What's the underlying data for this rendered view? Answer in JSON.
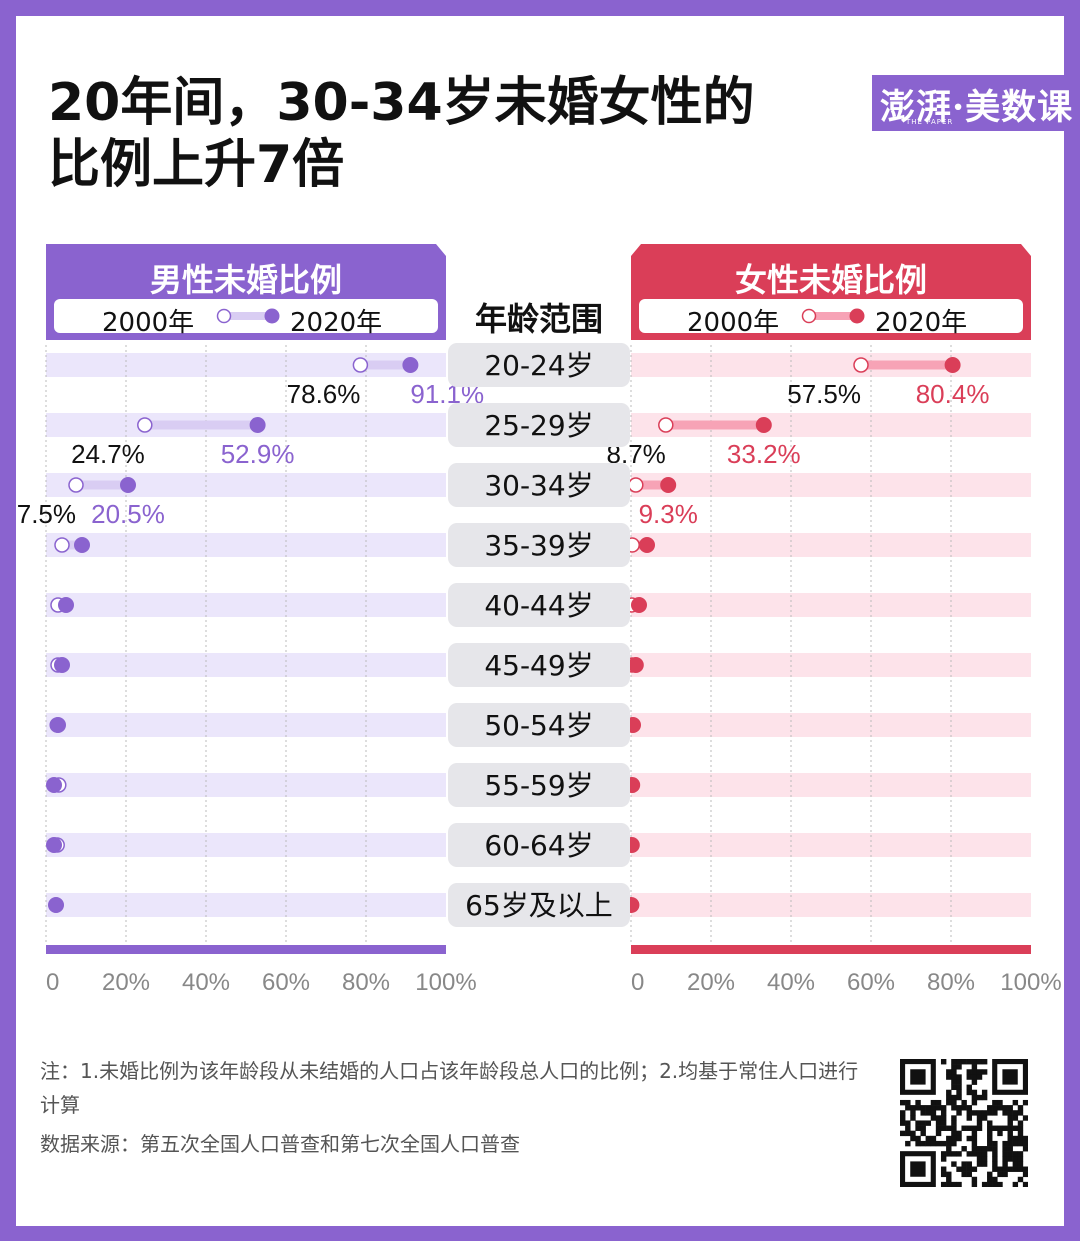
{
  "title_line1": "20年间，30-34岁未婚女性的",
  "title_line2": "比例上升7倍",
  "logo": {
    "text": "澎湃·美数课",
    "sub": "THE PAPER"
  },
  "male_panel": {
    "title": "男性未婚比例",
    "legend_2000": "2000年",
    "legend_2020": "2020年"
  },
  "female_panel": {
    "title": "女性未婚比例",
    "legend_2000": "2000年",
    "legend_2020": "2020年"
  },
  "age_header": "年龄范围",
  "colors": {
    "purple": "#8a63cf",
    "purple_band": "#ebe6fb",
    "purple_light_line": "#d9cdf3",
    "red": "#da3e58",
    "red_band": "#fde3ea",
    "red_light_line": "#f7a3b6"
  },
  "chart_data": {
    "type": "dumbbell",
    "categories": [
      "20-24岁",
      "25-29岁",
      "30-34岁",
      "35-39岁",
      "40-44岁",
      "45-49岁",
      "50-54岁",
      "55-59岁",
      "60-64岁",
      "65岁及以上"
    ],
    "series": [
      {
        "name": "男性未婚比例",
        "values_2000": [
          78.6,
          24.7,
          7.5,
          4.0,
          3.0,
          3.0,
          2.8,
          3.2,
          2.8,
          2.5
        ],
        "values_2020": [
          91.1,
          52.9,
          20.5,
          9.0,
          5.0,
          4.0,
          3.0,
          2.0,
          2.0,
          2.5
        ]
      },
      {
        "name": "女性未婚比例",
        "values_2000": [
          57.5,
          8.7,
          1.2,
          0.3,
          0.2,
          0.3,
          0.2,
          0.1,
          0.1,
          0.1
        ],
        "values_2020": [
          80.4,
          33.2,
          9.3,
          4.0,
          2.0,
          1.2,
          0.5,
          0.3,
          0.2,
          0.1
        ]
      }
    ],
    "labels": {
      "male": [
        {
          "v2000": "78.6%",
          "v2020": "91.1%"
        },
        {
          "v2000": "24.7%",
          "v2020": "52.9%"
        },
        {
          "v2000": "7.5%",
          "v2020": "20.5%"
        }
      ],
      "female": [
        {
          "v2000": "57.5%",
          "v2020": "80.4%"
        },
        {
          "v2000": "8.7%",
          "v2020": "33.2%"
        },
        {
          "v2000": "",
          "v2020": "9.3%"
        }
      ]
    },
    "x_ticks": [
      "0",
      "20%",
      "40%",
      "60%",
      "80%",
      "100%"
    ],
    "xlim": [
      0,
      100
    ]
  },
  "note": "注：1.未婚比例为该年龄段从未结婚的人口占该年龄段总人口的比例；2.均基于常住人口进行计算",
  "source": "数据来源：第五次全国人口普查和第七次全国人口普查"
}
